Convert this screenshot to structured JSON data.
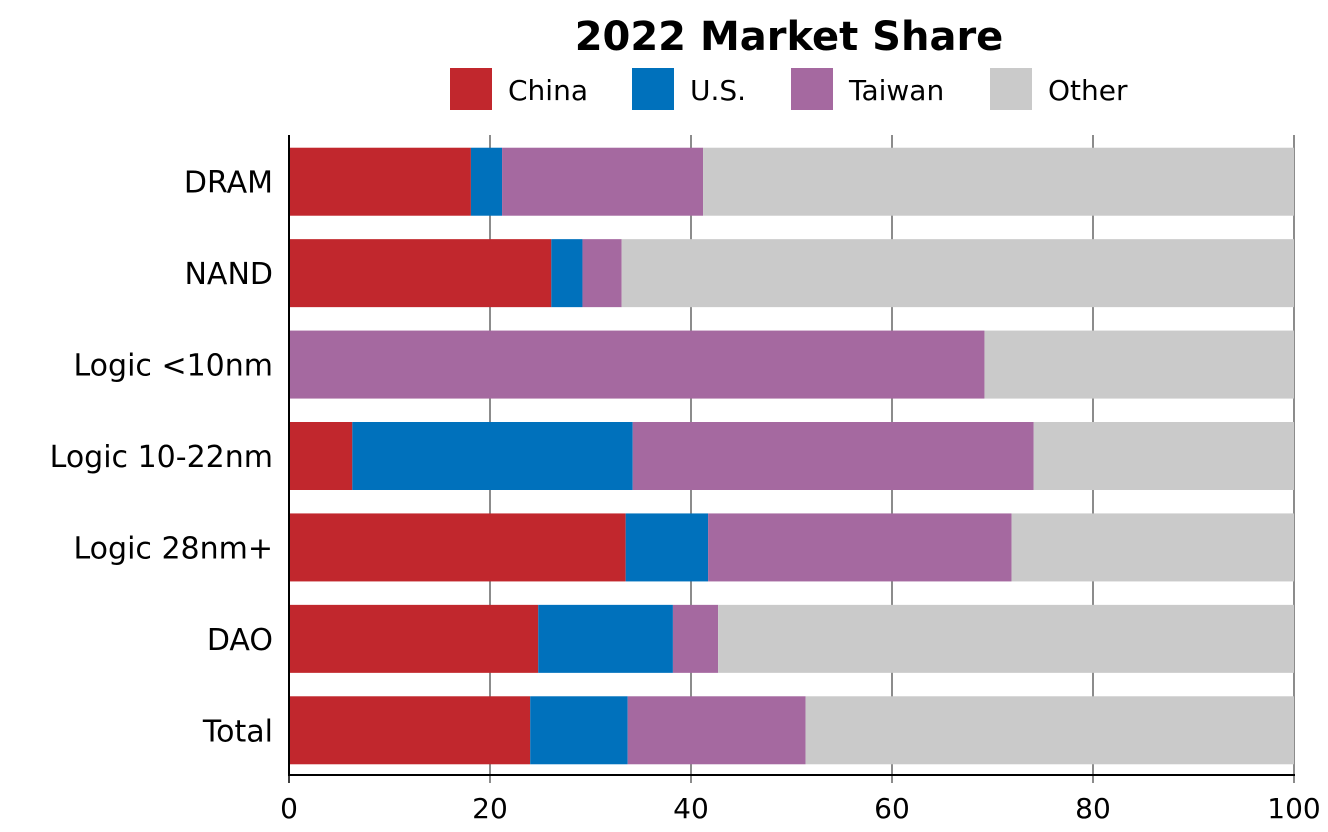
{
  "chart_data": {
    "type": "bar",
    "orientation": "horizontal",
    "stacked": true,
    "title": "2022 Market Share",
    "xlabel": "",
    "ylabel": "",
    "xlim": [
      0,
      100
    ],
    "xticks": [
      "0",
      "20",
      "40",
      "60",
      "80",
      "100"
    ],
    "grid": true,
    "legend_position": "top",
    "categories": [
      "DRAM",
      "NAND",
      "Logic <10nm",
      "Logic 10-22nm",
      "Logic 28nm+",
      "DAO",
      "Total"
    ],
    "series": [
      {
        "name": "China",
        "color": "#C1272D",
        "values": [
          18.1,
          26.1,
          0,
          6.3,
          33.5,
          24.8,
          24.0
        ]
      },
      {
        "name": "U.S.",
        "color": "#0071BC",
        "values": [
          3.1,
          3.1,
          0,
          27.9,
          8.2,
          13.4,
          9.7
        ]
      },
      {
        "name": "Taiwan",
        "color": "#A569A0",
        "values": [
          20.0,
          3.9,
          69.2,
          39.9,
          30.2,
          4.5,
          17.7
        ]
      },
      {
        "name": "Other",
        "color": "#CACACA",
        "values": [
          58.8,
          66.9,
          30.8,
          25.9,
          28.1,
          57.3,
          48.6
        ]
      }
    ]
  }
}
